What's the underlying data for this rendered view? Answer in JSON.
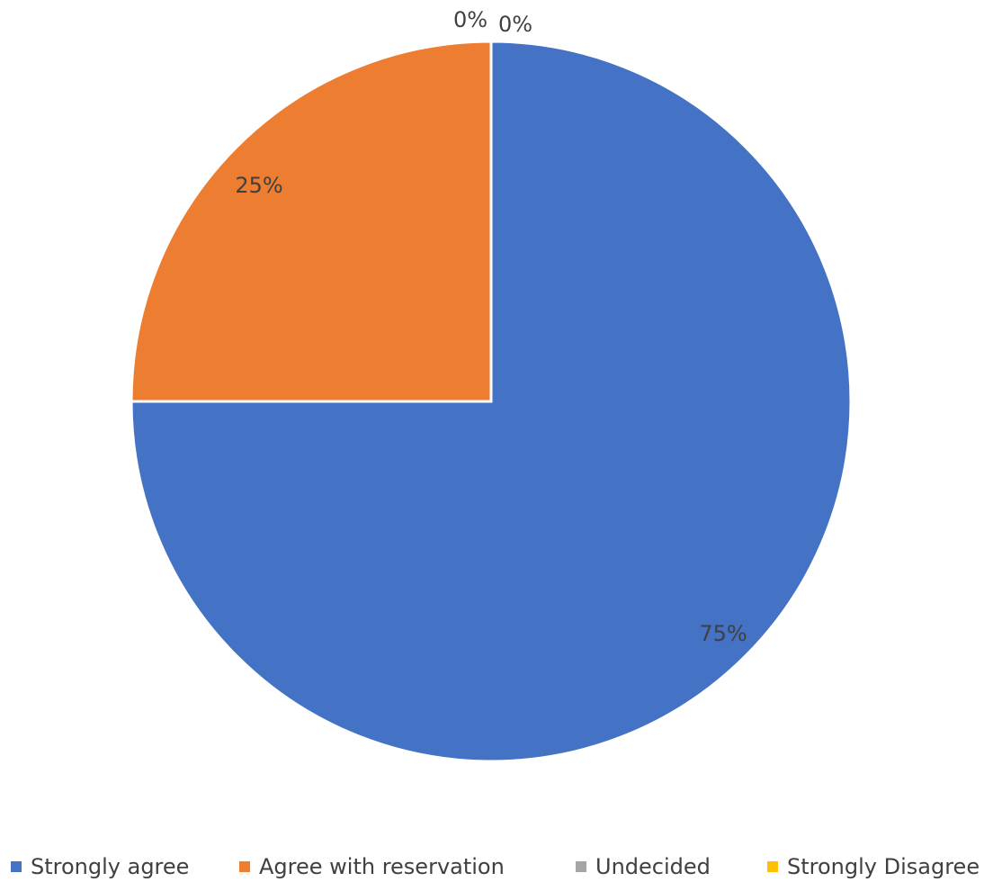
{
  "chart_data": {
    "type": "pie",
    "title": "",
    "categories": [
      "Strongly agree",
      "Agree with reservation",
      "Undecided",
      "Strongly Disagree"
    ],
    "values": [
      75,
      25,
      0,
      0
    ],
    "data_labels": [
      "75%",
      "25%",
      "0%",
      "0%"
    ],
    "colors": [
      "#4472C4",
      "#ED7D31",
      "#A5A5A5",
      "#FFC000"
    ],
    "legend_position": "bottom",
    "start_angle": "top",
    "direction": "clockwise"
  }
}
